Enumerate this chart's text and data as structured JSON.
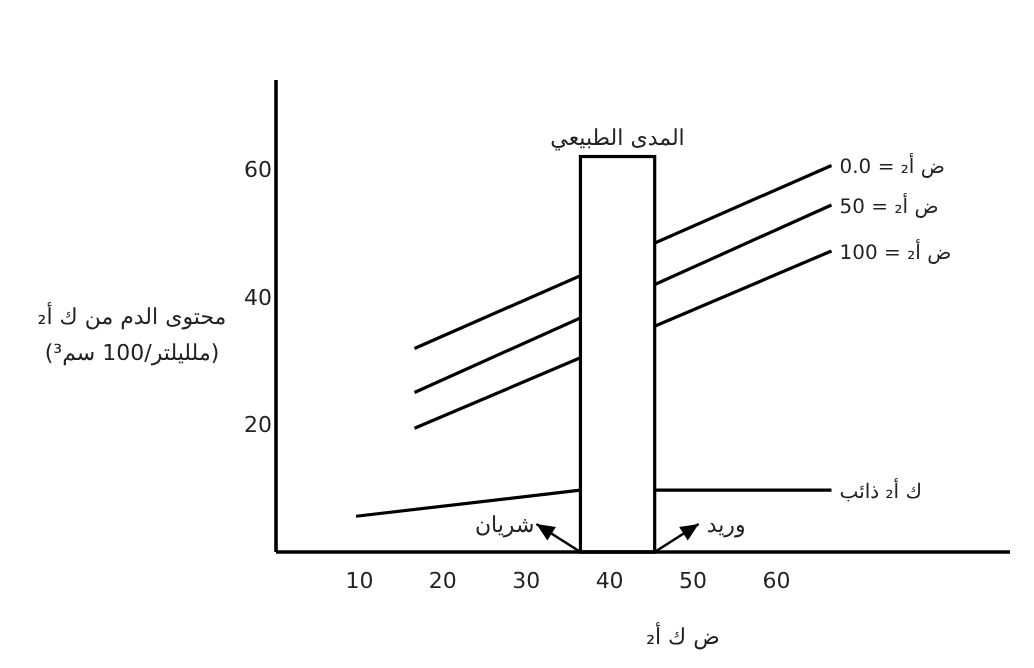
{
  "chart_data": {
    "type": "line",
    "xlabel": "ض ك أ₂",
    "ylabel": "محتوى الدم من ك أ₂\n(ملليلتر/100 سم³)",
    "xlim": [
      0,
      88
    ],
    "ylim": [
      0,
      74
    ],
    "xticks": [
      10,
      20,
      30,
      40,
      50,
      60
    ],
    "yticks": [
      20,
      40,
      60
    ],
    "grid": false,
    "legend": false,
    "series": [
      {
        "name": "ض أ₂ = 0.0",
        "color": "#000000",
        "x": [
          16.6,
          66.6
        ],
        "values": [
          31.9,
          60.6
        ]
      },
      {
        "name": "ض أ₂ = 50",
        "color": "#000000",
        "x": [
          16.6,
          66.6
        ],
        "values": [
          25,
          54.4
        ]
      },
      {
        "name": "ض أ₂ = 100",
        "color": "#000000",
        "x": [
          16.6,
          66.6
        ],
        "values": [
          19.4,
          47.2
        ]
      },
      {
        "name": "ك أ₂ ذائب",
        "color": "#000000",
        "x": [
          9.6,
          36.5,
          45.4,
          66.6
        ],
        "values": [
          5.6,
          9.7,
          9.7,
          9.7
        ]
      },
      {
        "name": "المدى الطبيعي",
        "type": "bar",
        "color": "#ffffff",
        "x": [
          40.95
        ],
        "values": [
          62
        ]
      }
    ],
    "annotations": [
      {
        "text": "شريان",
        "x": 36.5,
        "y": 0
      },
      {
        "text": "وريد",
        "x": 45.4,
        "y": 0
      }
    ]
  }
}
